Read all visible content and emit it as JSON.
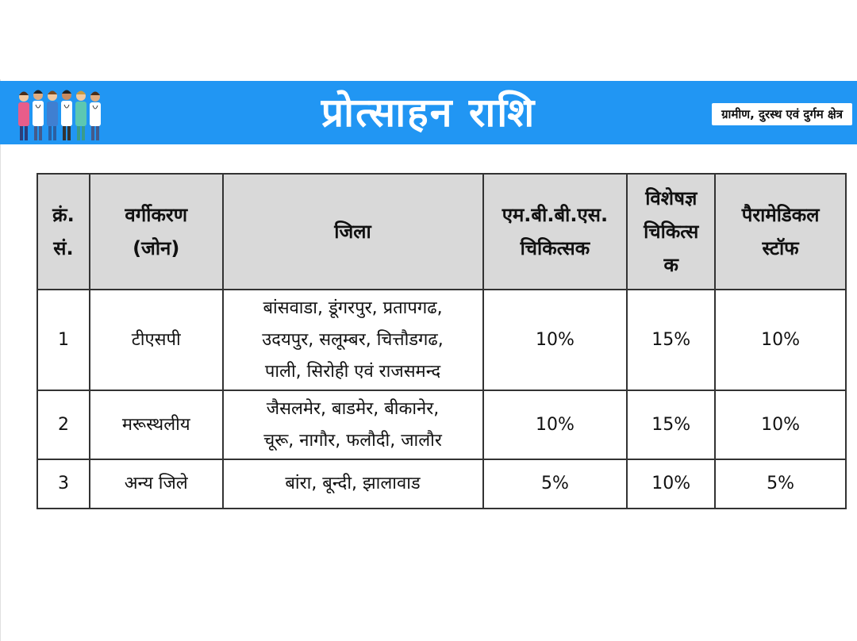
{
  "header": {
    "title": "प्रोत्साहन राशि",
    "badge": "ग्रामीण, दुरस्थ एवं दुर्गम क्षेत्र",
    "banner_color": "#2196f3",
    "image_icon": "doctors-group-illustration"
  },
  "table": {
    "columns": [
      "क्रं. सं.",
      "वर्गीकरण (जोन)",
      "जिला",
      "एम.बी.बी.एस. चिकित्सक",
      "विशेषज्ञ चिकित्स क",
      "पैरामेडिकल स्टॉफ"
    ],
    "columns_lines": [
      [
        "क्रं.",
        "सं."
      ],
      [
        "वर्गीकरण",
        "(जोन)"
      ],
      [
        "जिला"
      ],
      [
        "एम.बी.बी.एस.",
        "चिकित्सक"
      ],
      [
        "विशेषज्ञ",
        "चिकित्स",
        "क"
      ],
      [
        "पैरामेडिकल",
        "स्टॉफ"
      ]
    ],
    "rows": [
      {
        "sn": "1",
        "zone": "टीएसपी",
        "districts": [
          "बांसवाडा, डूंगरपुर, प्रतापगढ,",
          "उदयपुर, सलूम्बर, चित्तौडगढ,",
          "पाली, सिरोही एवं राजसमन्द"
        ],
        "mbbs": "10%",
        "specialist": "15%",
        "paramedical": "10%"
      },
      {
        "sn": "2",
        "zone": "मरूस्थलीय",
        "districts": [
          "जैसलमेर, बाडमेर, बीकानेर,",
          "चूरू, नागौर, फलौदी, जालौर"
        ],
        "mbbs": "10%",
        "specialist": "15%",
        "paramedical": "10%"
      },
      {
        "sn": "3",
        "zone": "अन्य जिले",
        "districts": [
          "बांरा, बून्दी, झालावाड"
        ],
        "mbbs": "5%",
        "specialist": "10%",
        "paramedical": "5%"
      }
    ]
  }
}
